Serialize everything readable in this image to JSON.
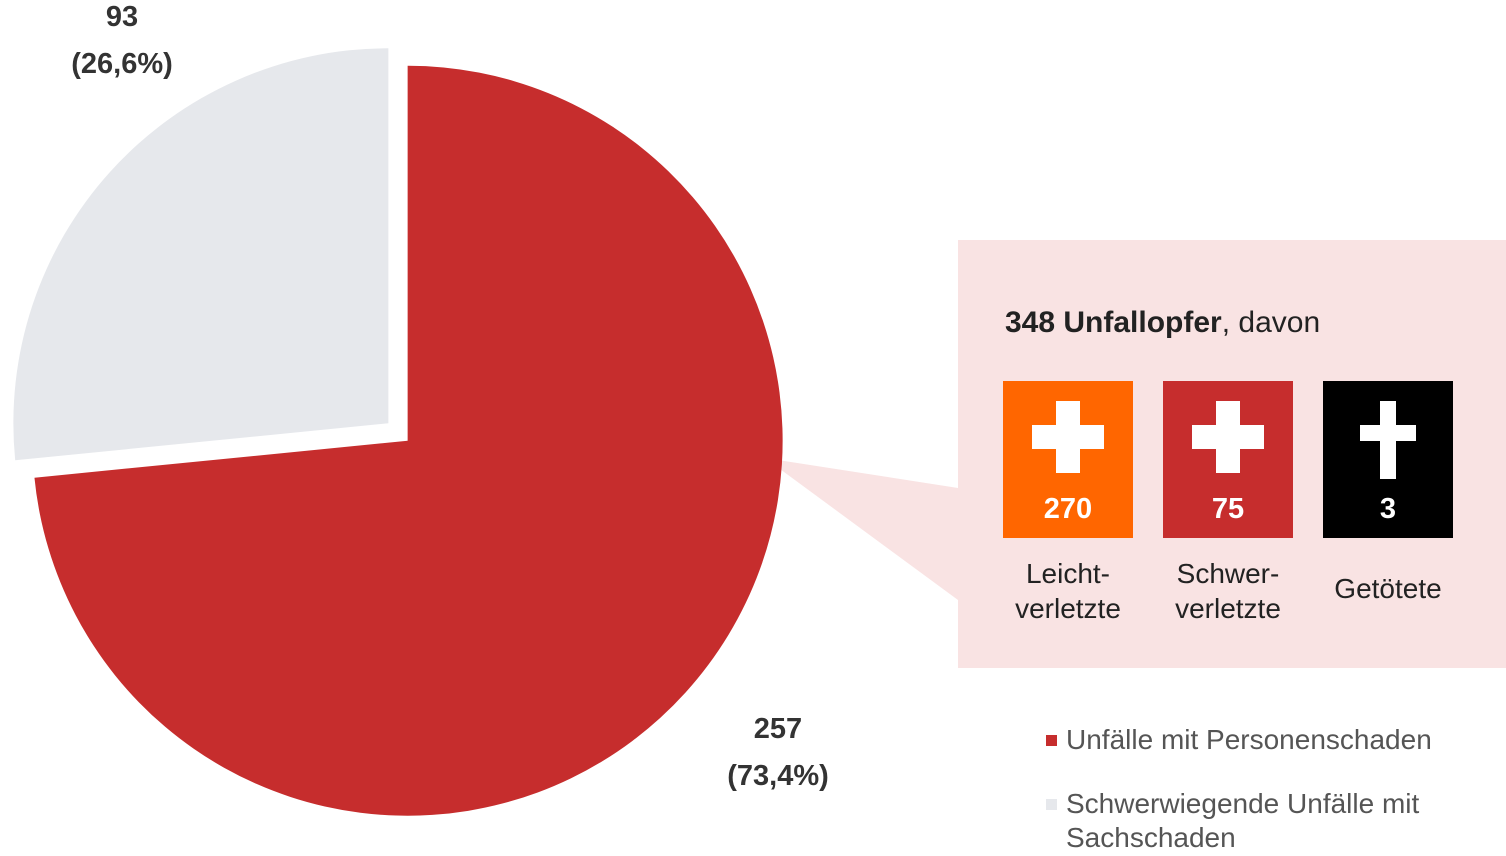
{
  "chart_data": {
    "type": "pie",
    "categories": [
      "Unfälle mit Personenschaden",
      "Schwerwiegende Unfälle mit Sachschaden"
    ],
    "values": [
      257,
      93
    ],
    "value_labels": [
      "257",
      "93"
    ],
    "percent_labels": [
      "(73,4%)",
      "(26,6%)"
    ],
    "colors": [
      "#c62d2d",
      "#e6e8ec"
    ],
    "callout": {
      "title_bold": "348 Unfallopfer",
      "title_rest": ", davon",
      "items": [
        {
          "value": 270,
          "label": "Leicht-\nverletzte",
          "color": "#ff6600"
        },
        {
          "value": 75,
          "label": "Schwer-\nverletzte",
          "color": "#c62d2d"
        },
        {
          "value": 3,
          "label": "Getötete",
          "color": "#000000"
        }
      ]
    }
  }
}
